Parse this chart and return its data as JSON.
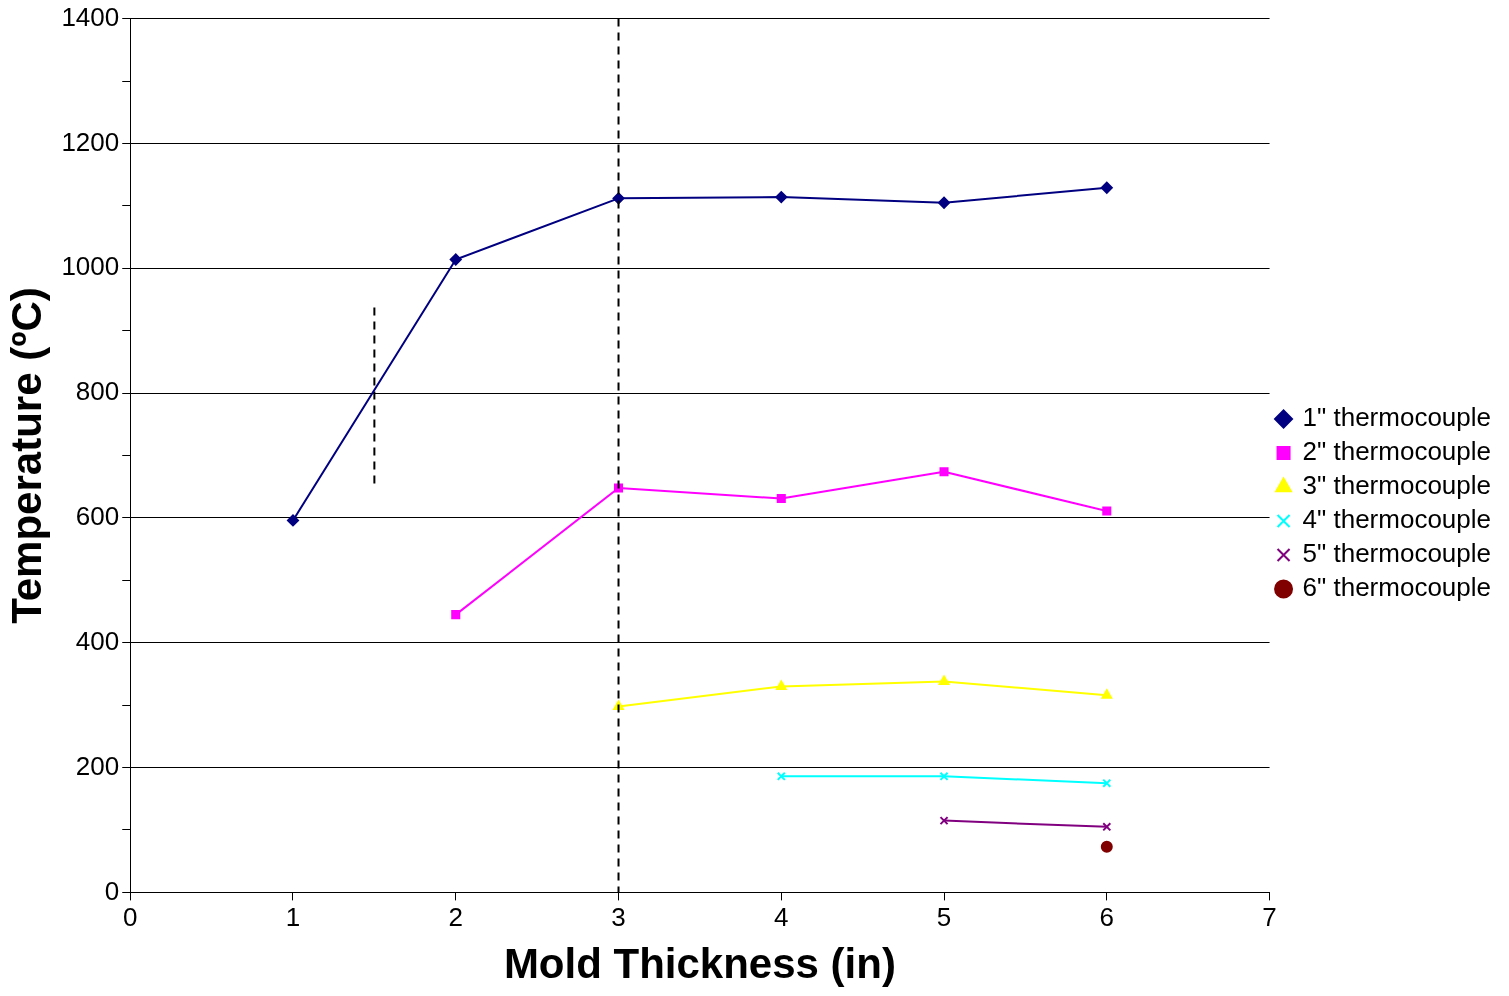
{
  "chart_data": {
    "type": "line",
    "xlabel": "Mold Thickness (in)",
    "ylabel": "Temperature (ºC)",
    "xlim": [
      0,
      7
    ],
    "xticks": [
      0,
      1,
      2,
      3,
      4,
      5,
      6,
      7
    ],
    "ylim": [
      0,
      1400
    ],
    "yticks": [
      0,
      {
        "value": 100,
        "label": null
      },
      200,
      {
        "value": 300,
        "label": null
      },
      400,
      {
        "value": 500,
        "label": null
      },
      600,
      {
        "value": 700,
        "label": null
      },
      800,
      {
        "value": 900,
        "label": null
      },
      1000,
      {
        "value": 1100,
        "label": null
      },
      1200,
      {
        "value": 1300,
        "label": null
      },
      1400
    ],
    "grid": "y",
    "legend": "right",
    "series": [
      {
        "name": "1\" thermocouple",
        "color": "#000080",
        "marker": "diamond",
        "x": [
          1,
          2,
          3,
          4,
          5,
          6
        ],
        "values": [
          596,
          1014,
          1112,
          1114,
          1105,
          1129
        ]
      },
      {
        "name": "2\" thermocouple",
        "color": "#ff00ff",
        "marker": "square",
        "x": [
          2,
          3,
          4,
          5,
          6
        ],
        "values": [
          445,
          648,
          631,
          674,
          611
        ]
      },
      {
        "name": "3\" thermocouple",
        "color": "#ffff00",
        "marker": "triangle",
        "x": [
          3,
          4,
          5,
          6
        ],
        "values": [
          298,
          330,
          338,
          316
        ]
      },
      {
        "name": "4\" thermocouple",
        "color": "#00ffff",
        "marker": "cross",
        "x": [
          4,
          5,
          6
        ],
        "values": [
          186,
          186,
          175
        ]
      },
      {
        "name": "5\" thermocouple",
        "color": "#800080",
        "marker": "cross",
        "x": [
          5,
          6
        ],
        "values": [
          115,
          105
        ]
      },
      {
        "name": "6\" thermocouple",
        "color": "#800000",
        "marker": "circle",
        "x": [
          6
        ],
        "values": [
          73
        ]
      },
      {
        "color": "#000000",
        "marker": "none",
        "line_style": "dashed",
        "x": [
          1.5,
          1.5
        ],
        "values": [
          937,
          646
        ]
      }
    ],
    "ref_lines": [
      {
        "axis": "x",
        "value": 3,
        "color": "#000000",
        "line_style": "dashed"
      }
    ]
  }
}
